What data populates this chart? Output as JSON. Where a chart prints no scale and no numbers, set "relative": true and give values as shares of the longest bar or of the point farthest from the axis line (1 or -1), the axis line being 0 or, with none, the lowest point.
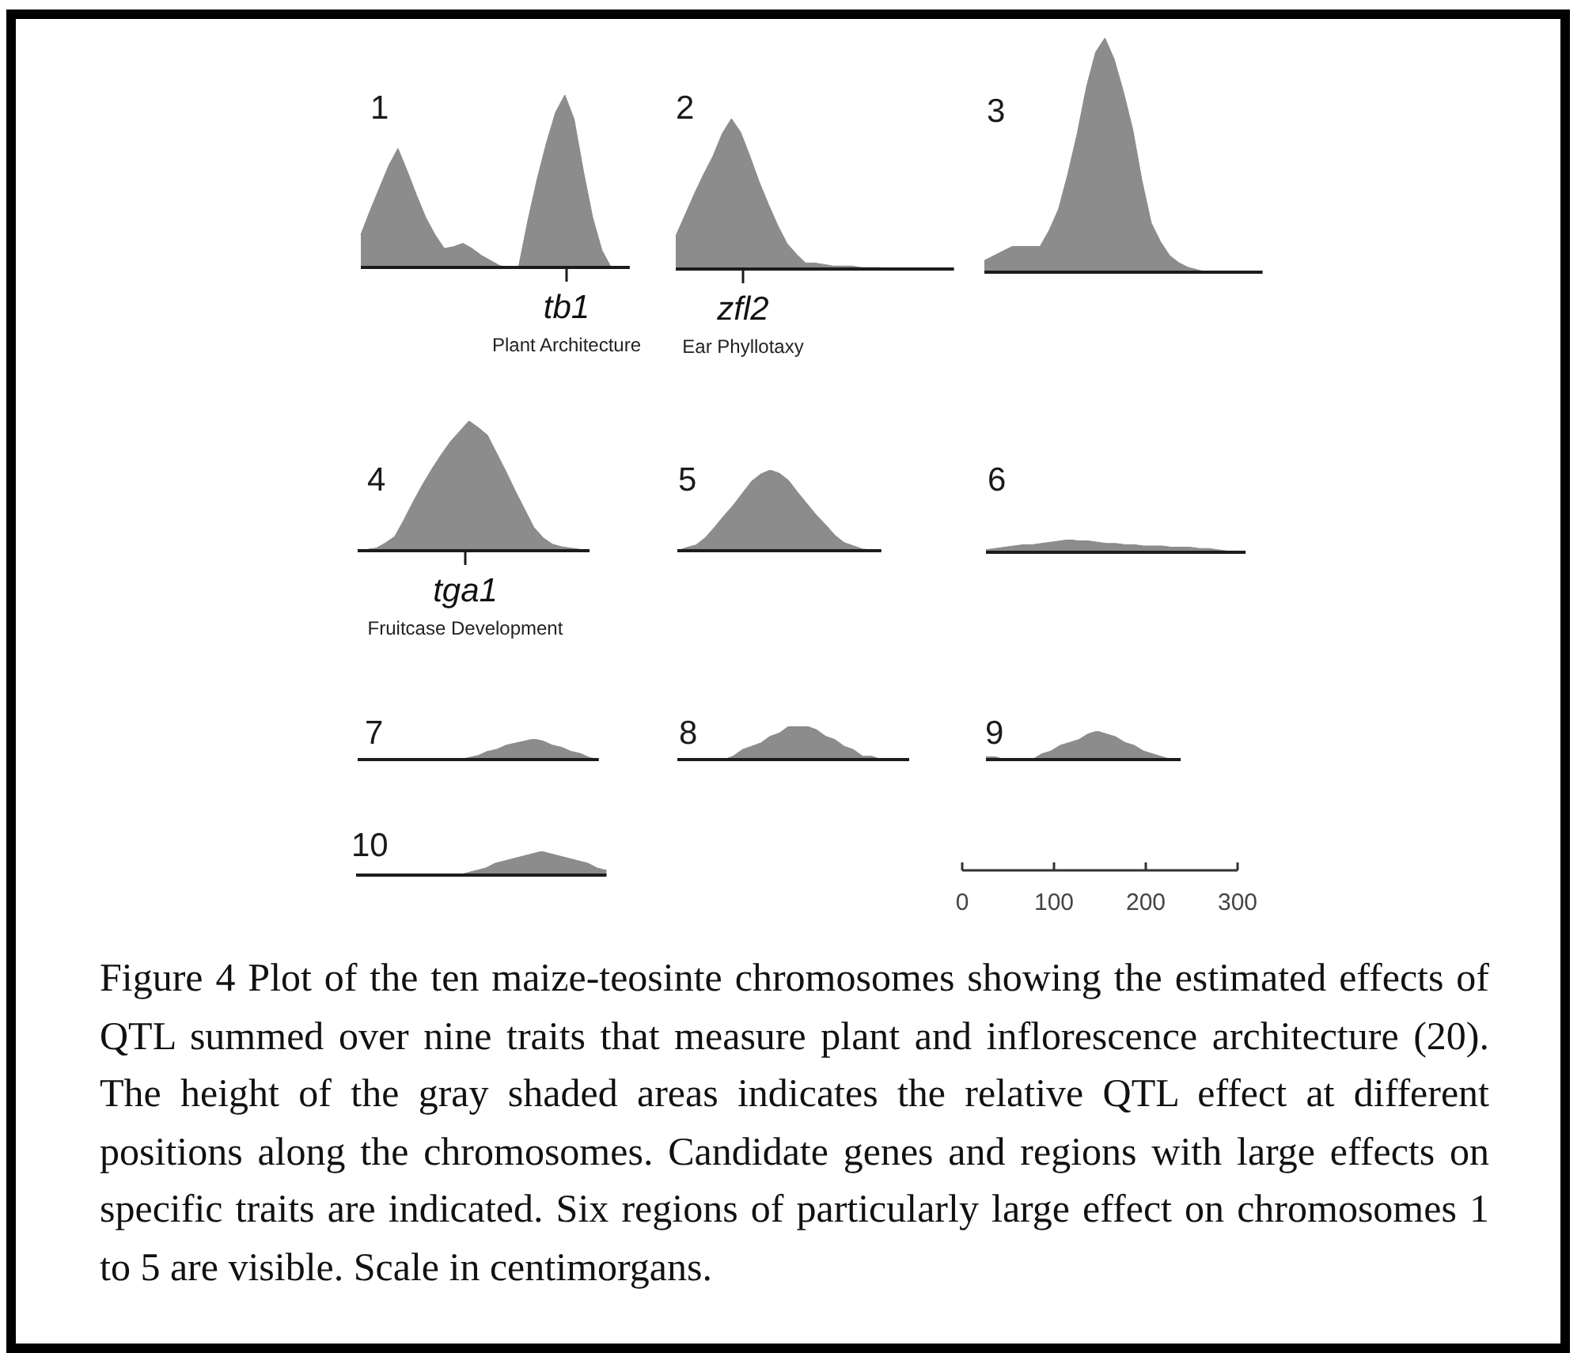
{
  "chart_data": [
    {
      "type": "area",
      "relative": true,
      "title": "1",
      "color": "#8c8c8c",
      "annotations": [
        "tb1",
        "Plant Architecture"
      ],
      "categories": [
        null,
        null,
        null,
        null,
        null,
        null,
        null,
        null,
        null,
        null,
        null,
        null,
        null,
        null,
        null,
        null,
        null,
        null,
        null,
        null,
        null,
        null,
        null,
        null,
        null,
        null,
        null,
        null,
        null,
        null
      ],
      "values": [
        0.19,
        0.33,
        0.46,
        0.59,
        0.69,
        0.56,
        0.42,
        0.29,
        0.19,
        0.11,
        0.12,
        0.14,
        0.11,
        0.07,
        0.04,
        0.01,
        0,
        0,
        0.27,
        0.51,
        0.72,
        0.9,
        1,
        0.86,
        0.56,
        0.29,
        0.1,
        0,
        0,
        0
      ]
    },
    {
      "type": "area",
      "relative": true,
      "title": "2",
      "color": "#8c8c8c",
      "annotations": [
        "zfl2",
        "Ear Phyllotaxy"
      ],
      "categories": [
        null,
        null,
        null,
        null,
        null,
        null,
        null,
        null,
        null,
        null,
        null,
        null,
        null,
        null,
        null,
        null,
        null,
        null,
        null,
        null,
        null,
        null,
        null,
        null,
        null,
        null,
        null,
        null,
        null,
        null,
        null
      ],
      "values": [
        0.22,
        0.36,
        0.5,
        0.63,
        0.75,
        0.9,
        1,
        0.91,
        0.75,
        0.58,
        0.43,
        0.29,
        0.17,
        0.1,
        0.04,
        0.04,
        0.03,
        0.02,
        0.02,
        0.02,
        0.01,
        0.01,
        0.01,
        0,
        0,
        0,
        0,
        0,
        0,
        0,
        0
      ]
    },
    {
      "type": "area",
      "relative": true,
      "title": "3",
      "color": "#8c8c8c",
      "categories": [
        null,
        null,
        null,
        null,
        null,
        null,
        null,
        null,
        null,
        null,
        null,
        null,
        null,
        null,
        null,
        null,
        null,
        null,
        null,
        null,
        null,
        null,
        null,
        null,
        null,
        null,
        null,
        null,
        null,
        null,
        null
      ],
      "values": [
        0.05,
        0.07,
        0.09,
        0.11,
        0.11,
        0.11,
        0.11,
        0.18,
        0.27,
        0.42,
        0.59,
        0.79,
        0.94,
        1,
        0.91,
        0.77,
        0.61,
        0.39,
        0.21,
        0.13,
        0.07,
        0.04,
        0.02,
        0.01,
        0,
        0,
        0,
        0,
        0,
        0,
        0
      ]
    },
    {
      "type": "area",
      "relative": true,
      "title": "4",
      "color": "#8c8c8c",
      "annotations": [
        "tga1",
        "Fruitcase Development"
      ],
      "categories": [
        null,
        null,
        null,
        null,
        null,
        null,
        null,
        null,
        null,
        null,
        null,
        null,
        null,
        null,
        null,
        null,
        null,
        null,
        null,
        null,
        null,
        null,
        null,
        null,
        null,
        null
      ],
      "values": [
        0,
        0.01,
        0.02,
        0.06,
        0.11,
        0.24,
        0.38,
        0.51,
        0.63,
        0.74,
        0.84,
        0.92,
        1,
        0.95,
        0.89,
        0.75,
        0.61,
        0.46,
        0.32,
        0.18,
        0.1,
        0.05,
        0.03,
        0.02,
        0.01,
        0
      ]
    },
    {
      "type": "area",
      "relative": true,
      "title": "5",
      "color": "#8c8c8c",
      "categories": [
        null,
        null,
        null,
        null,
        null,
        null,
        null,
        null,
        null,
        null,
        null,
        null,
        null,
        null,
        null,
        null,
        null,
        null,
        null,
        null,
        null,
        null,
        null
      ],
      "values": [
        0,
        0.04,
        0.07,
        0.16,
        0.29,
        0.43,
        0.56,
        0.71,
        0.86,
        0.95,
        1,
        0.96,
        0.87,
        0.72,
        0.58,
        0.44,
        0.32,
        0.19,
        0.1,
        0.06,
        0.02,
        0.01,
        0
      ]
    },
    {
      "type": "area",
      "relative": true,
      "title": "6",
      "color": "#8c8c8c",
      "categories": [
        null,
        null,
        null,
        null,
        null,
        null,
        null,
        null,
        null,
        null,
        null,
        null,
        null,
        null,
        null,
        null,
        null,
        null,
        null,
        null,
        null,
        null,
        null,
        null,
        null,
        null,
        null,
        null,
        null
      ],
      "values": [
        0.2,
        0.3,
        0.4,
        0.5,
        0.6,
        0.6,
        0.7,
        0.8,
        0.9,
        1,
        0.9,
        0.9,
        0.8,
        0.7,
        0.7,
        0.6,
        0.6,
        0.5,
        0.5,
        0.5,
        0.4,
        0.4,
        0.4,
        0.3,
        0.3,
        0.2,
        0.1,
        0.1,
        0
      ]
    },
    {
      "type": "area",
      "relative": true,
      "title": "7",
      "color": "#8c8c8c",
      "categories": [
        null,
        null,
        null,
        null,
        null,
        null,
        null,
        null,
        null,
        null,
        null,
        null,
        null,
        null,
        null,
        null,
        null,
        null,
        null,
        null,
        null,
        null,
        null,
        null,
        null,
        null,
        null
      ],
      "values": [
        0,
        0,
        0,
        0,
        0,
        0,
        0,
        0,
        0,
        0,
        0,
        0,
        0.1,
        0.2,
        0.4,
        0.5,
        0.7,
        0.8,
        0.9,
        1,
        0.9,
        0.7,
        0.6,
        0.4,
        0.3,
        0.1,
        0
      ]
    },
    {
      "type": "area",
      "relative": true,
      "title": "8",
      "color": "#8c8c8c",
      "categories": [
        null,
        null,
        null,
        null,
        null,
        null,
        null,
        null,
        null,
        null,
        null,
        null,
        null,
        null,
        null,
        null,
        null,
        null,
        null,
        null,
        null,
        null,
        null,
        null,
        null,
        null
      ],
      "values": [
        0,
        0,
        0,
        0,
        0,
        0,
        0.1,
        0.3,
        0.4,
        0.5,
        0.7,
        0.8,
        1,
        1,
        1,
        0.9,
        0.7,
        0.6,
        0.4,
        0.3,
        0.1,
        0.1,
        0,
        0,
        0,
        0
      ]
    },
    {
      "type": "area",
      "relative": true,
      "title": "9",
      "color": "#8c8c8c",
      "x2lim": [
        0,
        300
      ],
      "x2ticks": [
        0,
        100,
        200,
        300
      ],
      "categories": [
        null,
        null,
        null,
        null,
        null,
        null,
        null,
        null,
        null,
        null,
        null,
        null,
        null,
        null,
        null,
        null,
        null,
        null,
        null,
        null,
        null,
        null
      ],
      "values": [
        0.1,
        0.1,
        0,
        0,
        0,
        0,
        0.2,
        0.3,
        0.5,
        0.6,
        0.7,
        0.9,
        1,
        0.9,
        0.8,
        0.6,
        0.5,
        0.3,
        0.2,
        0.1,
        0,
        0
      ]
    },
    {
      "type": "area",
      "relative": true,
      "title": "10",
      "color": "#8c8c8c",
      "categories": [
        null,
        null,
        null,
        null,
        null,
        null,
        null,
        null,
        null,
        null,
        null,
        null,
        null,
        null,
        null,
        null,
        null,
        null,
        null,
        null,
        null,
        null,
        null,
        null,
        null,
        null,
        null,
        null
      ],
      "values": [
        0,
        0,
        0,
        0,
        0,
        0,
        0,
        0,
        0,
        0,
        0,
        0,
        0.1,
        0.2,
        0.3,
        0.5,
        0.6,
        0.7,
        0.8,
        0.9,
        1,
        0.9,
        0.8,
        0.7,
        0.6,
        0.5,
        0.3,
        0.2
      ]
    },
    {
      "type": "other",
      "annotations": [
        "Figure 4 Plot of the ten maize-teosinte chromosomes showing the estimated effects of QTL summed over nine traits that measure plant and inflorescence architecture (20). The height of the gray shaded areas indicates the relative QTL effect at different positions along the chromosomes. Candidate genes and regions with large effects on specific traits are indicated. Six regions of particularly large effect on chromosomes 1 to 5 are visible. Scale in centimorgans."
      ]
    }
  ]
}
